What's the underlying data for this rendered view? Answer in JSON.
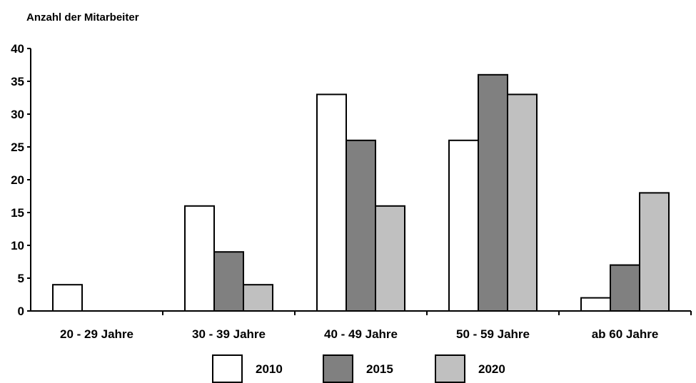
{
  "chart_data": {
    "type": "bar",
    "ylabel": "Anzahl der Mitarbeiter",
    "categories": [
      "20 - 29 Jahre",
      "30 - 39 Jahre",
      "40 - 49 Jahre",
      "50 - 59 Jahre",
      "ab 60 Jahre"
    ],
    "series": [
      {
        "name": "2010",
        "values": [
          4,
          16,
          33,
          26,
          2
        ],
        "color": "#ffffff"
      },
      {
        "name": "2015",
        "values": [
          0,
          9,
          26,
          36,
          7
        ],
        "color": "#808080"
      },
      {
        "name": "2020",
        "values": [
          0,
          4,
          16,
          33,
          18
        ],
        "color": "#c0c0c0"
      }
    ],
    "ylim": [
      0,
      40
    ],
    "yticks": [
      0,
      5,
      10,
      15,
      20,
      25,
      30,
      35,
      40
    ],
    "grid": false,
    "legend": "bottom"
  }
}
